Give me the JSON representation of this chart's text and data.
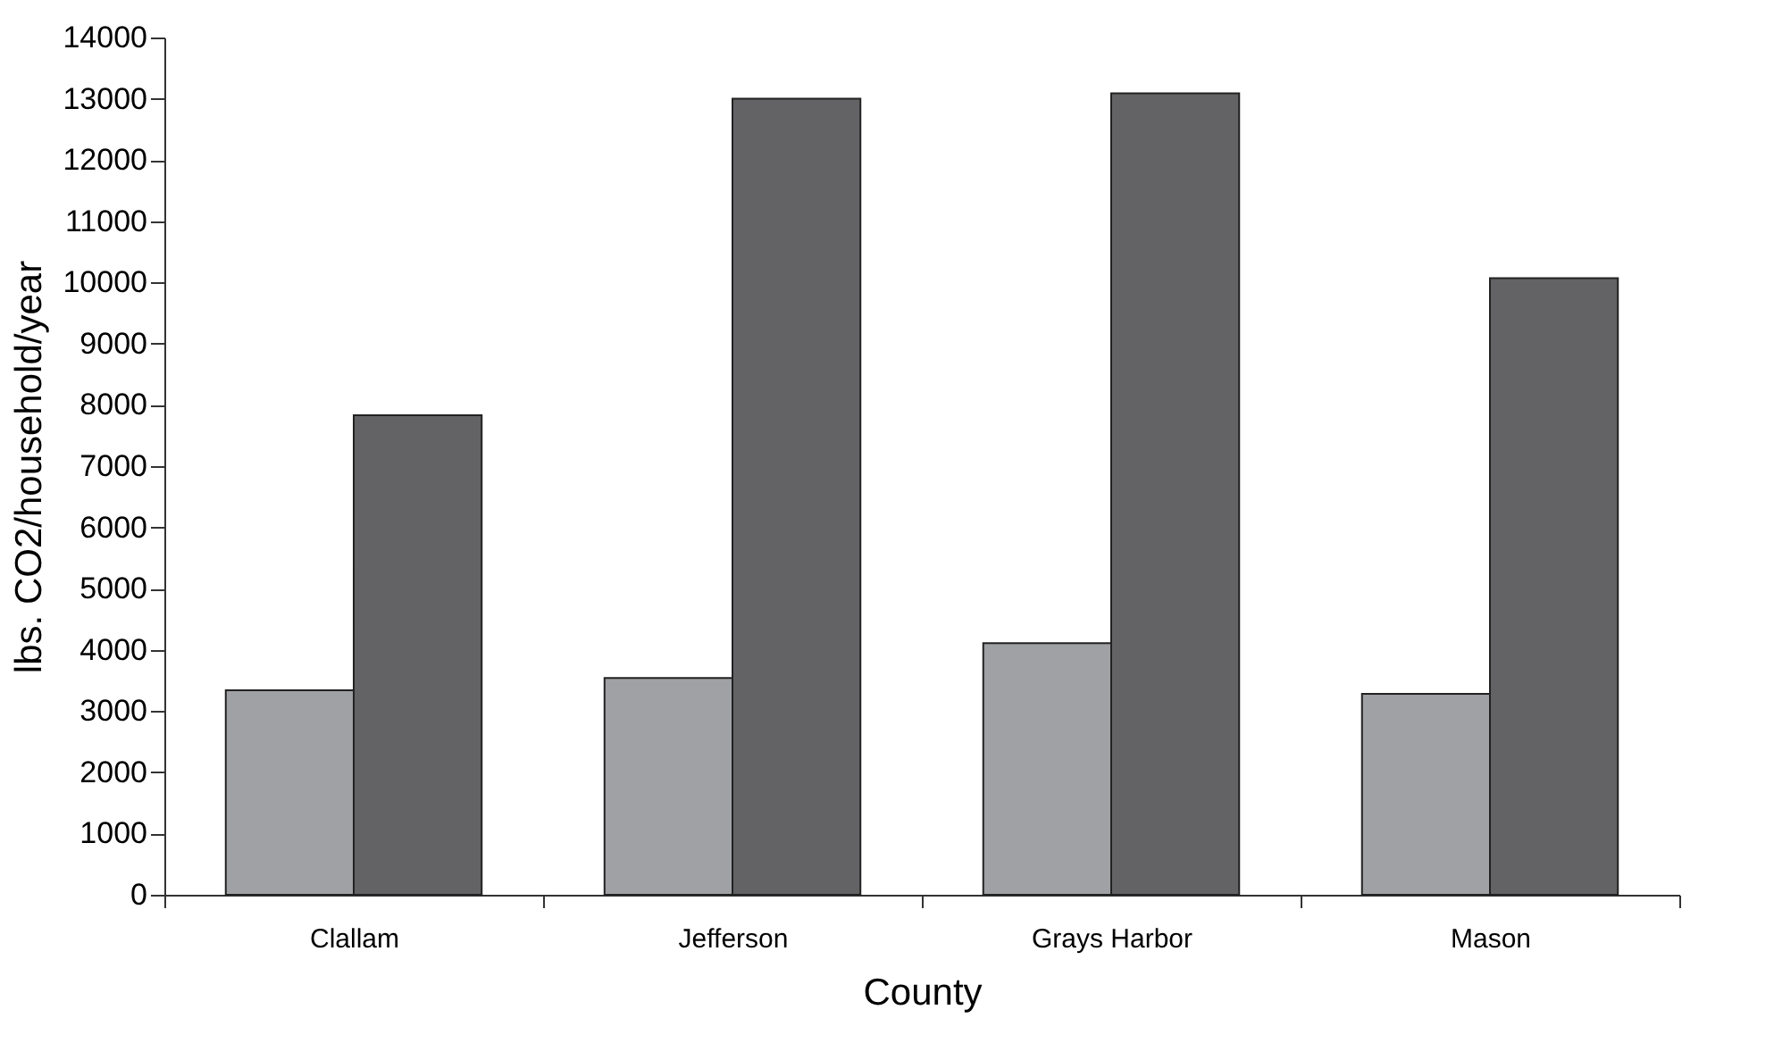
{
  "chart_data": {
    "type": "bar",
    "xlabel": "County",
    "ylabel": "lbs. CO2/household/year",
    "categories": [
      "Clallam",
      "Jefferson",
      "Grays Harbor",
      "Mason"
    ],
    "series": [
      {
        "color": "#a0a1a5",
        "values": [
          3340,
          3540,
          4110,
          3280
        ]
      },
      {
        "color": "#636366",
        "values": [
          7830,
          13000,
          13090,
          10070
        ]
      }
    ],
    "ylim": [
      0,
      14000
    ],
    "yticks": [
      0,
      1000,
      2000,
      3000,
      4000,
      5000,
      6000,
      7000,
      8000,
      9000,
      10000,
      11000,
      12000,
      13000,
      14000
    ],
    "grid": false
  }
}
